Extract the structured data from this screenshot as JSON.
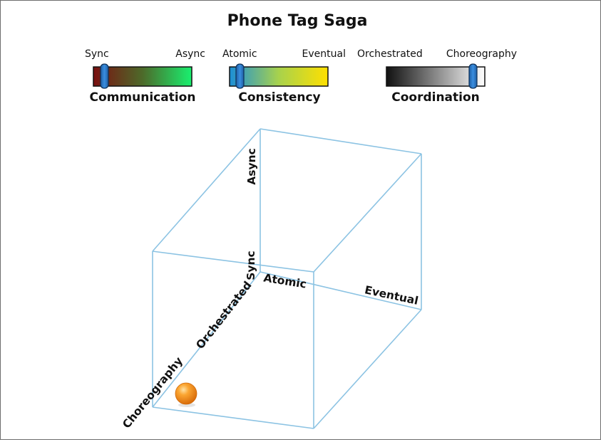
{
  "title": "Phone Tag Saga",
  "legends": [
    {
      "name": "Communication",
      "left_label": "Sync",
      "right_label": "Async",
      "marker_position": 0.1
    },
    {
      "name": "Consistency",
      "left_label": "Atomic",
      "right_label": "Eventual",
      "marker_position": 0.1
    },
    {
      "name": "Coordination",
      "left_label": "Orchestrated",
      "right_label": "Choreography",
      "marker_position": 0.9
    }
  ],
  "cube": {
    "labels": {
      "async": "Async",
      "sync": "Sync",
      "atomic": "Atomic",
      "eventual": "Eventual",
      "orchestrated": "Orchestrated",
      "choreography": "Choreography"
    },
    "point": {
      "communication": "Sync",
      "consistency": "Atomic",
      "coordination": "Choreography"
    }
  },
  "colors": {
    "cube_edge": "#8cc3e3",
    "marker_fill": "#2a6fb8",
    "point": "#f2931c",
    "communication_gradient": [
      "#7a1010",
      "#19f06f"
    ],
    "consistency_gradient": [
      "#1c8fd6",
      "#ffe000"
    ],
    "coordination_gradient": [
      "#111111",
      "#ffffff"
    ]
  }
}
